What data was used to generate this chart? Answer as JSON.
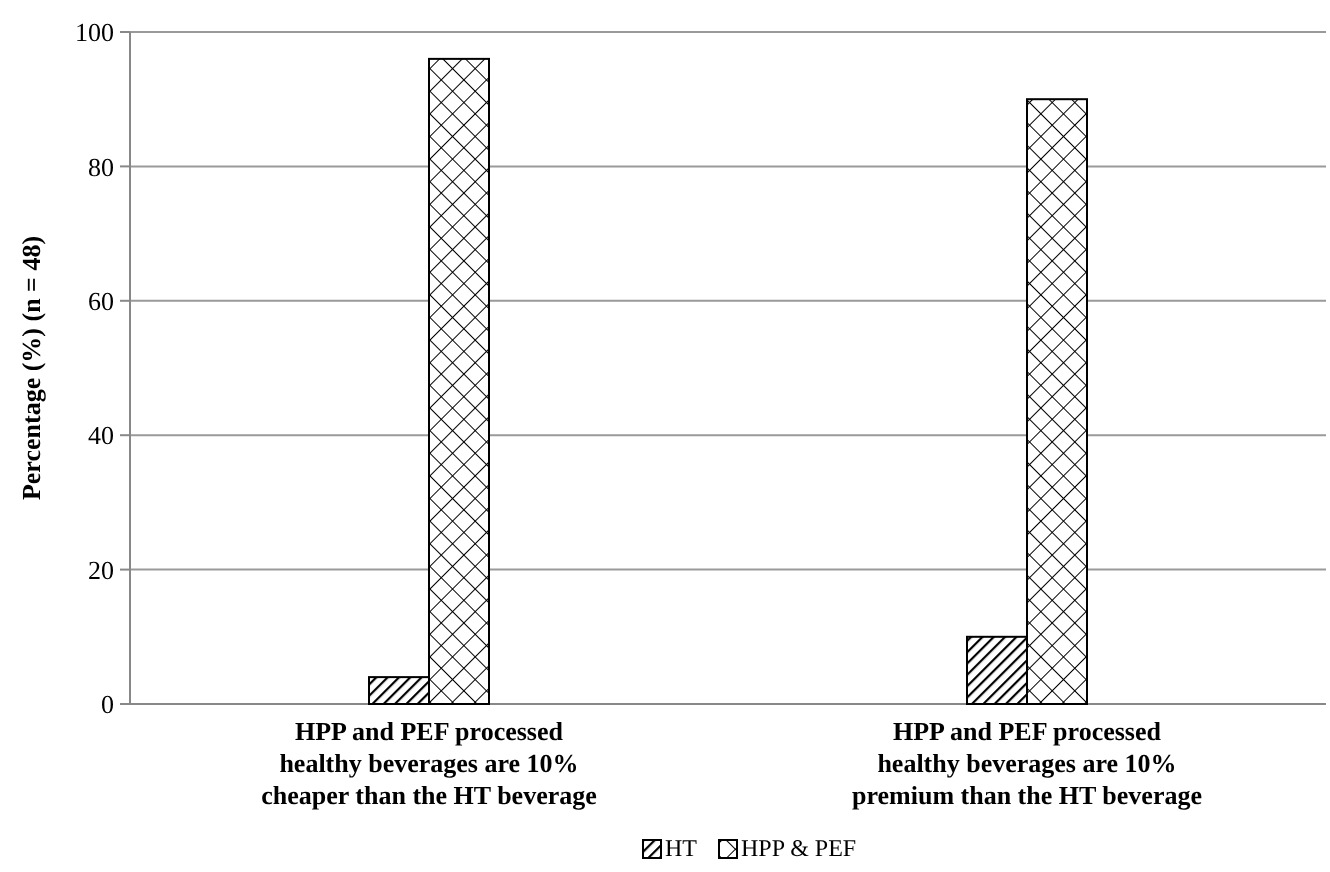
{
  "chart_data": {
    "type": "bar",
    "ylabel": "Percentage (%) (n = 48)",
    "categories": [
      "HPP and PEF processed healthy beverages are 10% cheaper than the HT beverage",
      "HPP and PEF processed healthy beverages are 10% premium than the HT beverage"
    ],
    "series": [
      {
        "name": "HT",
        "color": "#000000",
        "values": [
          4,
          10
        ]
      },
      {
        "name": "HPP & PEF",
        "color": "#000000",
        "values": [
          96,
          90
        ]
      }
    ],
    "ylim": [
      0,
      100
    ],
    "yticks": [
      0,
      20,
      40,
      60,
      80,
      100
    ],
    "grid": "y",
    "legend": "bottom"
  }
}
